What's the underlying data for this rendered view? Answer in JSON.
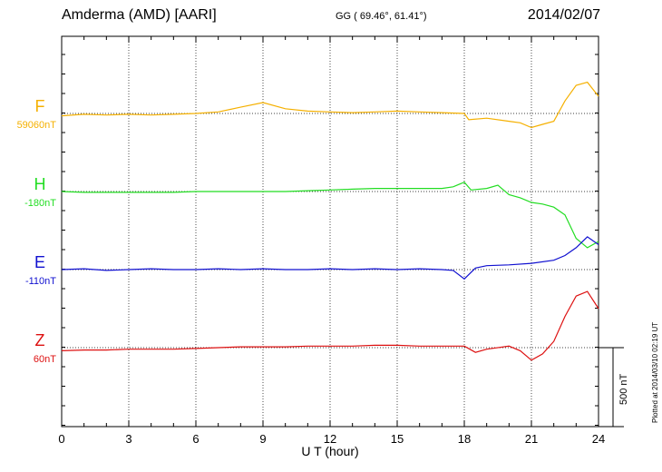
{
  "header": {
    "station": "Amderma (AMD)  [AARI]",
    "coords": "GG ( 69.46°,  61.41°)",
    "date": "2014/02/07"
  },
  "plotted_note": "Plotted at 2014/03/10 02:19 UT",
  "colors": {
    "F": "#f5b000",
    "H": "#22dd22",
    "E": "#1010d0",
    "Z": "#dd1010"
  },
  "chart_data": {
    "type": "line",
    "title": "",
    "xlabel": "U T (hour)",
    "xlim": [
      0,
      24
    ],
    "x_ticks": [
      "0",
      "3",
      "6",
      "9",
      "12",
      "15",
      "18",
      "21",
      "24"
    ],
    "scale_label": "500 nT",
    "scale_nT": 500,
    "grid": "dotted vertical lines every 3 h, dotted baseline per component",
    "series": [
      {
        "name": "F",
        "baseline": "59060nT",
        "color": "#f5b000",
        "x": [
          0,
          1,
          2,
          3,
          4,
          5,
          6,
          7,
          8,
          9,
          10,
          11,
          12,
          13,
          14,
          15,
          16,
          17,
          18,
          18.2,
          19,
          20,
          20.5,
          21,
          21.5,
          22,
          22.5,
          23,
          23.5,
          24
        ],
        "y": [
          -15,
          -5,
          -10,
          -5,
          -10,
          -5,
          0,
          10,
          40,
          70,
          30,
          15,
          10,
          5,
          10,
          15,
          10,
          5,
          0,
          -40,
          -30,
          -50,
          -60,
          -90,
          -70,
          -50,
          80,
          180,
          200,
          110
        ]
      },
      {
        "name": "H",
        "baseline": "-180nT",
        "color": "#22dd22",
        "x": [
          0,
          1,
          2,
          3,
          4,
          5,
          6,
          7,
          8,
          9,
          10,
          11,
          12,
          13,
          14,
          15,
          16,
          17,
          17.5,
          18,
          18.3,
          19,
          19.5,
          20,
          20.5,
          21,
          21.5,
          22,
          22.5,
          23,
          23.5,
          24
        ],
        "y": [
          0,
          -5,
          -5,
          -5,
          -5,
          -5,
          0,
          0,
          0,
          0,
          0,
          5,
          10,
          15,
          20,
          20,
          20,
          20,
          30,
          60,
          10,
          20,
          40,
          -20,
          -40,
          -70,
          -80,
          -100,
          -150,
          -300,
          -360,
          -320
        ]
      },
      {
        "name": "E",
        "baseline": "-110nT",
        "color": "#1010d0",
        "x": [
          0,
          1,
          2,
          3,
          4,
          5,
          6,
          7,
          8,
          9,
          10,
          11,
          12,
          13,
          14,
          15,
          16,
          17,
          17.5,
          18,
          18.5,
          19,
          20,
          21,
          22,
          22.5,
          23,
          23.5,
          24
        ],
        "y": [
          0,
          5,
          -5,
          0,
          5,
          0,
          0,
          5,
          0,
          5,
          0,
          0,
          5,
          0,
          5,
          0,
          5,
          0,
          -5,
          -60,
          10,
          25,
          30,
          40,
          60,
          90,
          140,
          210,
          160
        ]
      },
      {
        "name": "Z",
        "baseline": "60nT",
        "color": "#dd1010",
        "x": [
          0,
          1,
          2,
          3,
          4,
          5,
          6,
          7,
          8,
          9,
          10,
          11,
          12,
          13,
          14,
          15,
          16,
          17,
          18,
          18.5,
          19,
          20,
          20.5,
          21,
          21.5,
          22,
          22.5,
          23,
          23.5,
          24
        ],
        "y": [
          -20,
          -15,
          -15,
          -10,
          -10,
          -10,
          -5,
          0,
          5,
          5,
          5,
          10,
          10,
          10,
          15,
          15,
          10,
          10,
          10,
          -30,
          -10,
          10,
          -20,
          -80,
          -40,
          40,
          200,
          330,
          360,
          250
        ]
      }
    ]
  }
}
